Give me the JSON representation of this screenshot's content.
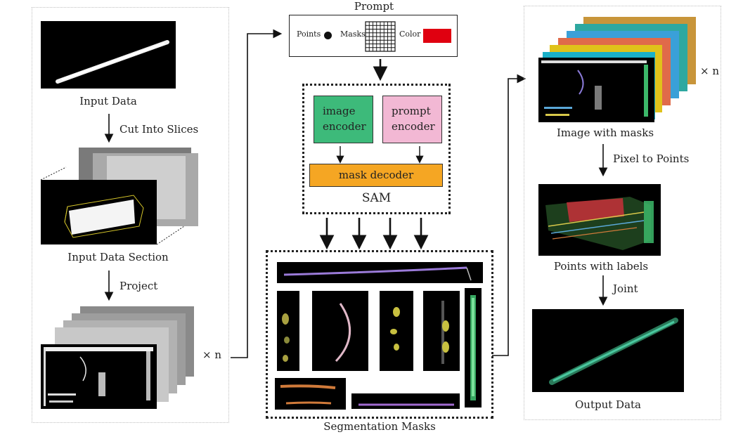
{
  "left_panel": {
    "input_data_label": "Input Data",
    "cut_label": "Cut Into Slices",
    "section_label": "Input Data Section",
    "project_label": "Project",
    "times_n": "× n"
  },
  "prompt": {
    "title": "Prompt",
    "points": "Points",
    "masks": "Masks",
    "color": "Color",
    "color_swatch": "#e00010"
  },
  "sam": {
    "image_encoder": "image encoder",
    "prompt_encoder": "prompt encoder",
    "mask_decoder": "mask decoder",
    "label": "SAM",
    "image_encoder_color": "#3dba7a",
    "prompt_encoder_color": "#f2b8d4",
    "mask_decoder_color": "#f5a623"
  },
  "segmentation": {
    "label": "Segmentation Masks"
  },
  "right_panel": {
    "image_masks_label": "Image with masks",
    "times_n": "× n",
    "pixel_label": "Pixel to Points",
    "points_labels": "Points with labels",
    "joint_label": "Joint",
    "output_label": "Output Data",
    "mask_colors": [
      "#c8953a",
      "#2ea8a0",
      "#3aa0d8",
      "#e06a4a",
      "#e0c21a",
      "#1ab0c8"
    ]
  }
}
